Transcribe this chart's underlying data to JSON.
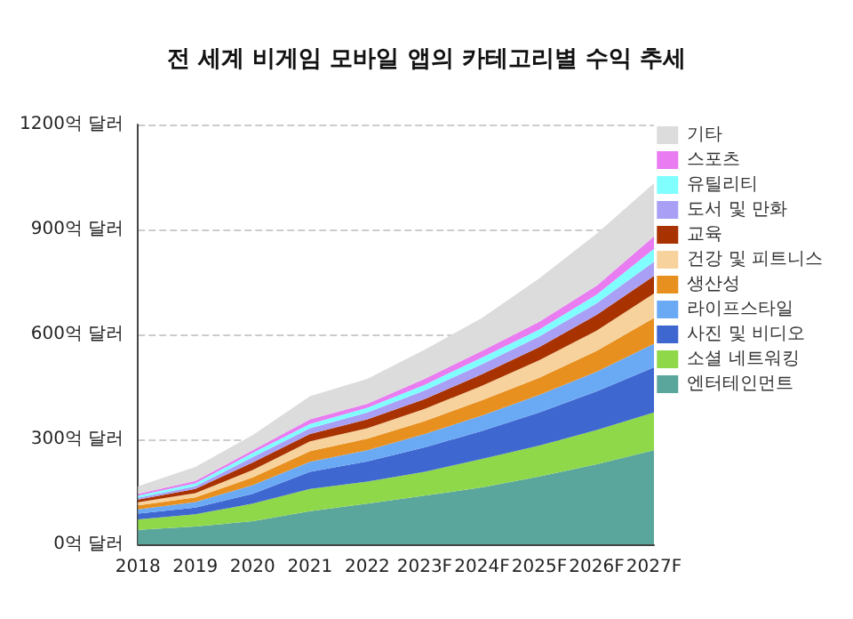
{
  "chart_data": {
    "type": "area",
    "stacked": true,
    "title": "전 세계 비게임 모바일 앱의 카테고리별 수익 추세",
    "categories": [
      "2018",
      "2019",
      "2020",
      "2021",
      "2022",
      "2023F",
      "2024F",
      "2025F",
      "2026F",
      "2027F"
    ],
    "series": [
      {
        "name": "엔터테인먼트",
        "color": "#5ba69c",
        "values": [
          41,
          51,
          66,
          95,
          116,
          139,
          163,
          194,
          229,
          269
        ]
      },
      {
        "name": "소셜 네트워킹",
        "color": "#8ed84a",
        "values": [
          30,
          35,
          50,
          63,
          63,
          68,
          81,
          88,
          98,
          108
        ]
      },
      {
        "name": "사진 및 비디오",
        "color": "#3f67d0",
        "values": [
          17,
          19,
          28,
          49,
          58,
          70,
          80,
          95,
          110,
          129
        ]
      },
      {
        "name": "라이프스타일",
        "color": "#6aaaf5",
        "values": [
          12,
          16,
          25,
          29,
          32,
          38,
          44,
          50,
          56,
          67
        ]
      },
      {
        "name": "생산성",
        "color": "#e8901f",
        "values": [
          11,
          13,
          22,
          30,
          33,
          37,
          44,
          49,
          60,
          74
        ]
      },
      {
        "name": "건강 및 피트니스",
        "color": "#f7d29c",
        "values": [
          9,
          12,
          21,
          28,
          30,
          35,
          41,
          50,
          58,
          70
        ]
      },
      {
        "name": "교육",
        "color": "#a83300",
        "values": [
          8,
          12,
          22,
          21,
          25,
          28,
          33,
          38,
          45,
          50
        ]
      },
      {
        "name": "도서 및 만화",
        "color": "#a9a0f5",
        "values": [
          5,
          8,
          15,
          17,
          20,
          25,
          29,
          30,
          33,
          41
        ]
      },
      {
        "name": "유틸리티",
        "color": "#80ffff",
        "values": [
          6,
          8,
          12,
          12,
          13,
          16,
          19,
          20,
          25,
          37
        ]
      },
      {
        "name": "스포츠",
        "color": "#e87cf0",
        "values": [
          5,
          7,
          8,
          13,
          12,
          17,
          19,
          22,
          25,
          35
        ]
      },
      {
        "name": "기타",
        "color": "#dcdcdc",
        "values": [
          22,
          40,
          43,
          66,
          71,
          83,
          94,
          124,
          149,
          152
        ]
      }
    ],
    "ylim": [
      0,
      1200
    ],
    "yticks": [
      {
        "value": 0,
        "label": "0억 달러"
      },
      {
        "value": 300,
        "label": "300억 달러"
      },
      {
        "value": 600,
        "label": "600억 달러"
      },
      {
        "value": 900,
        "label": "900억 달러"
      },
      {
        "value": 1200,
        "label": "1200억 달러"
      }
    ],
    "grid": "y",
    "legend": "right",
    "marker": "none"
  }
}
